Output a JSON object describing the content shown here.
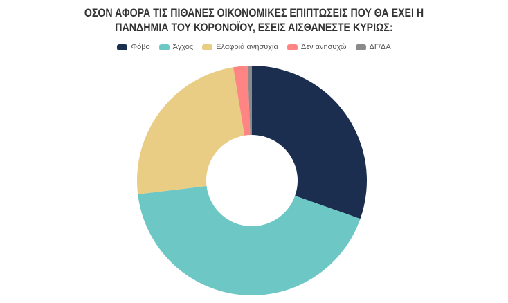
{
  "chart_data": {
    "type": "pie",
    "variant": "donut",
    "title": "ΟΣΟΝ ΑΦΟΡΑ ΤΙΣ ΠΙΘΑΝΕΣ ΟΙΚΟΝΟΜΙΚΕΣ ΕΠΙΠΤΩΣΕΙΣ ΠΟΥ ΘΑ ΕΧΕΙ Η ΠΑΝΔΗΜΙΑ ΤΟΥ ΚΟΡΟΝΟΪΟΥ, ΕΣΕΙΣ ΑΙΣΘΑΝΕΣΤΕ ΚΥΡΙΩΣ:",
    "title_lines": [
      "ΟΣΟΝ ΑΦΟΡΑ ΤΙΣ ΠΙΘΑΝΕΣ ΟΙΚΟΝΟΜΙΚΕΣ ΕΠΙΠΤΩΣΕΙΣ ΠΟΥ ΘΑ ΕΧΕΙ Η",
      "ΠΑΝΔΗΜΙΑ ΤΟΥ ΚΟΡΟΝΟΪΟΥ, ΕΣΕΙΣ ΑΙΣΘΑΝΕΣΤΕ ΚΥΡΙΩΣ:"
    ],
    "categories": [
      "Φόβο",
      "Άγχος",
      "Ελαφριά ανησυχία",
      "Δεν ανησυχώ",
      "ΔΓ/ΔΑ"
    ],
    "values": [
      30.4,
      42.7,
      24.3,
      2.0,
      0.6
    ],
    "unit": "%",
    "colors": [
      "#1b2e4f",
      "#6cc7c5",
      "#e9cd84",
      "#ff8585",
      "#8a8a8a"
    ],
    "legend_position": "top",
    "data_labels": false,
    "start_angle_deg": 0,
    "direction": "clockwise"
  },
  "legend": {
    "items": [
      {
        "label": "Φόβο",
        "color": "#1b2e4f"
      },
      {
        "label": "Άγχος",
        "color": "#6cc7c5"
      },
      {
        "label": "Ελαφριά ανησυχία",
        "color": "#e9cd84"
      },
      {
        "label": "Δεν ανησυχώ",
        "color": "#ff8585"
      },
      {
        "label": "ΔΓ/ΔΑ",
        "color": "#8a8a8a"
      }
    ]
  }
}
